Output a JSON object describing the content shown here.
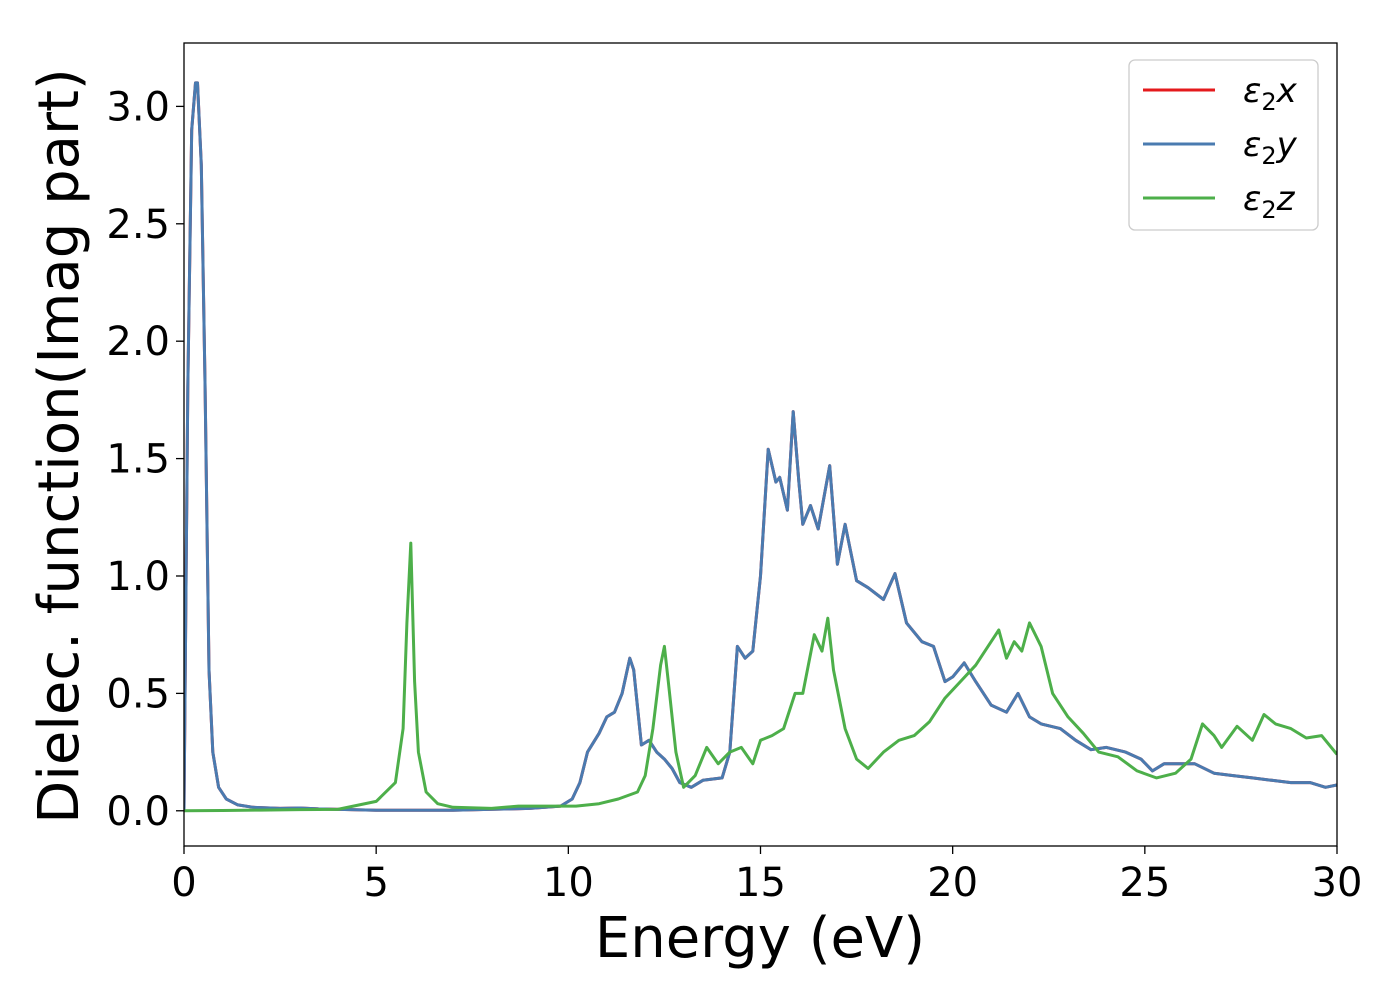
{
  "chart_data": {
    "type": "line",
    "title": "",
    "xlabel": "Energy (eV)",
    "ylabel": "Dielec. function(Imag part)",
    "xlim": [
      0,
      30
    ],
    "ylim": [
      -0.15,
      3.27
    ],
    "xticks": [
      0,
      5,
      10,
      15,
      20,
      25,
      30
    ],
    "yticks": [
      0.0,
      0.5,
      1.0,
      1.5,
      2.0,
      2.5,
      3.0
    ],
    "xtick_labels": [
      "0",
      "5",
      "10",
      "15",
      "20",
      "25",
      "30"
    ],
    "ytick_labels": [
      "0.0",
      "0.5",
      "1.0",
      "1.5",
      "2.0",
      "2.5",
      "3.0"
    ],
    "grid": false,
    "legend_position": "top-right",
    "series": [
      {
        "name": "ε2x",
        "legend_main": "ε",
        "legend_sub": "2",
        "legend_suffix": "x",
        "color": "#e41a1c",
        "x": [
          0,
          0.1,
          0.2,
          0.3,
          0.35,
          0.45,
          0.55,
          0.65,
          0.75,
          0.9,
          1.1,
          1.4,
          1.8,
          2.5,
          3.0,
          3.5,
          5,
          7,
          9,
          9.8,
          10.1,
          10.3,
          10.5,
          10.8,
          11.0,
          11.2,
          11.4,
          11.6,
          11.7,
          11.9,
          12.1,
          12.3,
          12.5,
          12.7,
          12.9,
          13.2,
          13.5,
          14.0,
          14.2,
          14.4,
          14.6,
          14.8,
          15.0,
          15.2,
          15.4,
          15.5,
          15.7,
          15.85,
          16.0,
          16.1,
          16.3,
          16.5,
          16.8,
          17.0,
          17.2,
          17.5,
          17.8,
          18.2,
          18.5,
          18.8,
          19.2,
          19.5,
          19.8,
          20.0,
          20.3,
          20.6,
          21.0,
          21.4,
          21.7,
          22.0,
          22.3,
          22.8,
          23.2,
          23.6,
          24.0,
          24.5,
          24.9,
          25.2,
          25.5,
          25.8,
          26.3,
          26.8,
          27.3,
          27.8,
          28.3,
          28.8,
          29.3,
          29.7,
          30.0
        ],
        "y": [
          0.0,
          1.8,
          2.9,
          3.1,
          3.1,
          2.75,
          1.8,
          0.6,
          0.25,
          0.1,
          0.05,
          0.025,
          0.015,
          0.01,
          0.012,
          0.008,
          0.002,
          0.002,
          0.01,
          0.02,
          0.05,
          0.12,
          0.25,
          0.33,
          0.4,
          0.42,
          0.5,
          0.65,
          0.6,
          0.28,
          0.3,
          0.25,
          0.22,
          0.18,
          0.12,
          0.1,
          0.13,
          0.14,
          0.25,
          0.7,
          0.65,
          0.68,
          1.0,
          1.54,
          1.4,
          1.42,
          1.28,
          1.7,
          1.4,
          1.22,
          1.3,
          1.2,
          1.47,
          1.05,
          1.22,
          0.98,
          0.95,
          0.9,
          1.01,
          0.8,
          0.72,
          0.7,
          0.55,
          0.57,
          0.63,
          0.55,
          0.45,
          0.42,
          0.5,
          0.4,
          0.37,
          0.35,
          0.3,
          0.26,
          0.27,
          0.25,
          0.22,
          0.17,
          0.2,
          0.2,
          0.2,
          0.16,
          0.15,
          0.14,
          0.13,
          0.12,
          0.12,
          0.1,
          0.11
        ]
      },
      {
        "name": "ε2y",
        "legend_main": "ε",
        "legend_sub": "2",
        "legend_suffix": "y",
        "color": "#4a7bb0",
        "x": [
          0,
          0.1,
          0.2,
          0.3,
          0.35,
          0.45,
          0.55,
          0.65,
          0.75,
          0.9,
          1.1,
          1.4,
          1.8,
          2.5,
          3.0,
          3.5,
          5,
          7,
          9,
          9.8,
          10.1,
          10.3,
          10.5,
          10.8,
          11.0,
          11.2,
          11.4,
          11.6,
          11.7,
          11.9,
          12.1,
          12.3,
          12.5,
          12.7,
          12.9,
          13.2,
          13.5,
          14.0,
          14.2,
          14.4,
          14.6,
          14.8,
          15.0,
          15.2,
          15.4,
          15.5,
          15.7,
          15.85,
          16.0,
          16.1,
          16.3,
          16.5,
          16.8,
          17.0,
          17.2,
          17.5,
          17.8,
          18.2,
          18.5,
          18.8,
          19.2,
          19.5,
          19.8,
          20.0,
          20.3,
          20.6,
          21.0,
          21.4,
          21.7,
          22.0,
          22.3,
          22.8,
          23.2,
          23.6,
          24.0,
          24.5,
          24.9,
          25.2,
          25.5,
          25.8,
          26.3,
          26.8,
          27.3,
          27.8,
          28.3,
          28.8,
          29.3,
          29.7,
          30.0
        ],
        "y": [
          0.0,
          1.8,
          2.9,
          3.1,
          3.1,
          2.75,
          1.8,
          0.6,
          0.25,
          0.1,
          0.05,
          0.025,
          0.015,
          0.01,
          0.012,
          0.008,
          0.002,
          0.002,
          0.01,
          0.02,
          0.05,
          0.12,
          0.25,
          0.33,
          0.4,
          0.42,
          0.5,
          0.65,
          0.6,
          0.28,
          0.3,
          0.25,
          0.22,
          0.18,
          0.12,
          0.1,
          0.13,
          0.14,
          0.25,
          0.7,
          0.65,
          0.68,
          1.0,
          1.54,
          1.4,
          1.42,
          1.28,
          1.7,
          1.4,
          1.22,
          1.3,
          1.2,
          1.47,
          1.05,
          1.22,
          0.98,
          0.95,
          0.9,
          1.01,
          0.8,
          0.72,
          0.7,
          0.55,
          0.57,
          0.63,
          0.55,
          0.45,
          0.42,
          0.5,
          0.4,
          0.37,
          0.35,
          0.3,
          0.26,
          0.27,
          0.25,
          0.22,
          0.17,
          0.2,
          0.2,
          0.2,
          0.16,
          0.15,
          0.14,
          0.13,
          0.12,
          0.12,
          0.1,
          0.11
        ]
      },
      {
        "name": "ε2z",
        "legend_main": "ε",
        "legend_sub": "2",
        "legend_suffix": "z",
        "color": "#4daf4a",
        "x": [
          0,
          1,
          2,
          3,
          4,
          5,
          5.5,
          5.7,
          5.8,
          5.9,
          6.0,
          6.1,
          6.3,
          6.6,
          7.0,
          8,
          8.7,
          9.5,
          10.2,
          10.8,
          11.3,
          11.8,
          12.0,
          12.2,
          12.4,
          12.5,
          12.6,
          12.8,
          13.0,
          13.3,
          13.6,
          13.9,
          14.2,
          14.5,
          14.8,
          15.0,
          15.3,
          15.6,
          15.9,
          16.1,
          16.4,
          16.6,
          16.75,
          16.9,
          17.2,
          17.5,
          17.8,
          18.2,
          18.6,
          19.0,
          19.4,
          19.8,
          20.2,
          20.6,
          21.0,
          21.2,
          21.4,
          21.6,
          21.8,
          22.0,
          22.3,
          22.6,
          23.0,
          23.4,
          23.8,
          24.3,
          24.8,
          25.3,
          25.8,
          26.2,
          26.5,
          26.8,
          27.0,
          27.4,
          27.8,
          28.1,
          28.4,
          28.8,
          29.2,
          29.6,
          30.0
        ],
        "y": [
          0.0,
          0.001,
          0.003,
          0.005,
          0.006,
          0.04,
          0.12,
          0.35,
          0.8,
          1.14,
          0.55,
          0.25,
          0.08,
          0.03,
          0.015,
          0.01,
          0.02,
          0.02,
          0.02,
          0.03,
          0.05,
          0.08,
          0.15,
          0.35,
          0.62,
          0.7,
          0.55,
          0.25,
          0.1,
          0.15,
          0.27,
          0.2,
          0.25,
          0.27,
          0.2,
          0.3,
          0.32,
          0.35,
          0.5,
          0.5,
          0.75,
          0.68,
          0.82,
          0.6,
          0.35,
          0.22,
          0.18,
          0.25,
          0.3,
          0.32,
          0.38,
          0.48,
          0.55,
          0.62,
          0.72,
          0.77,
          0.65,
          0.72,
          0.68,
          0.8,
          0.7,
          0.5,
          0.4,
          0.33,
          0.25,
          0.23,
          0.17,
          0.14,
          0.16,
          0.22,
          0.37,
          0.32,
          0.27,
          0.36,
          0.3,
          0.41,
          0.37,
          0.35,
          0.31,
          0.32,
          0.24
        ]
      }
    ]
  }
}
